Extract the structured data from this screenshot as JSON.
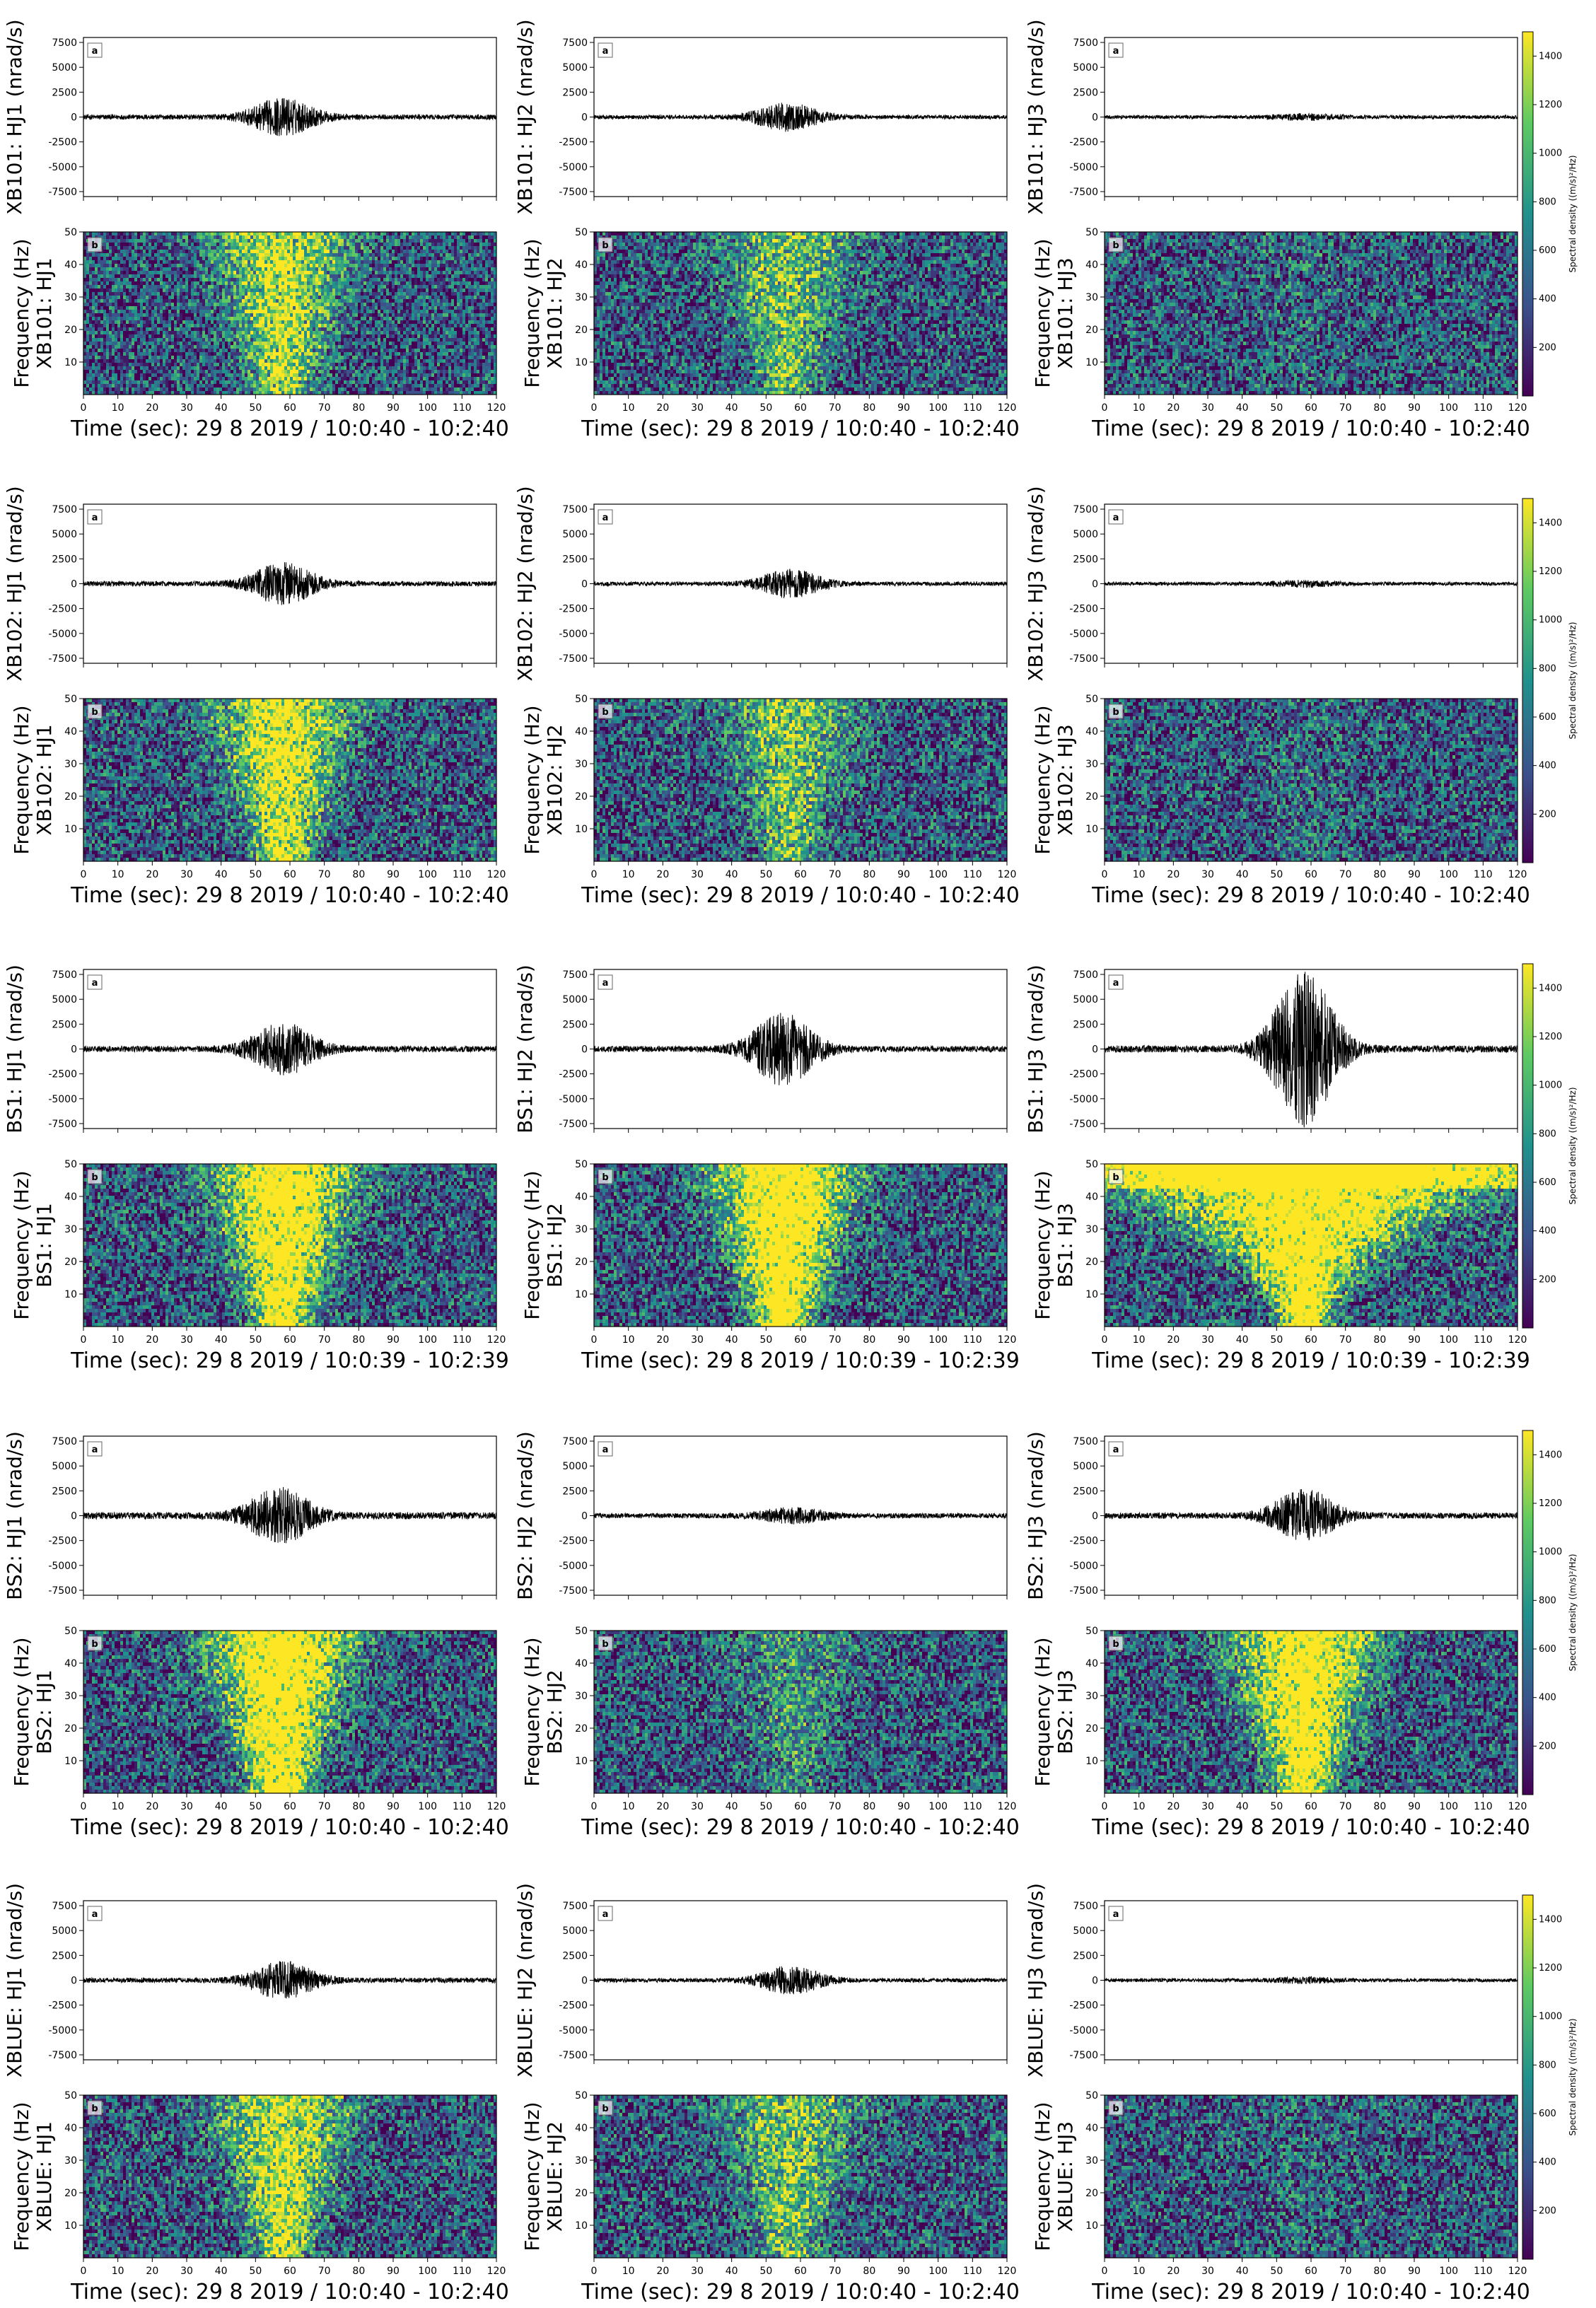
{
  "figure": {
    "stations": [
      "XB101",
      "XB102",
      "BS1",
      "BS2",
      "XBLUE"
    ],
    "components": [
      "HJ1",
      "HJ2",
      "HJ3"
    ],
    "time_labels": [
      "Time (sec): 29 8 2019 / 10:0:40 - 10:2:40",
      "Time (sec): 29 8 2019 / 10:0:40 - 10:2:40",
      "Time (sec): 29 8 2019 / 10:0:39 - 10:2:39",
      "Time (sec): 29 8 2019 / 10:0:40 - 10:2:40",
      "Time (sec): 29 8 2019 / 10:0:40 - 10:2:40"
    ],
    "panel_a_tag": "a",
    "panel_b_tag": "b",
    "wave_ylabel_suffix": "(nrad/s)",
    "spec_ylabel_prefix": "Frequency (Hz)",
    "colorbar_label": "Spectral density ((m/s)²/Hz)",
    "colors": {
      "viridis": [
        "#440154",
        "#3b528b",
        "#21918c",
        "#5ec962",
        "#fde725"
      ],
      "spectral_bright": "#fde725",
      "trace": "#000000"
    }
  },
  "chart_data": {
    "type": "waveform_and_spectrogram_grid",
    "waveform_axis": {
      "xlim": [
        0,
        120
      ],
      "ylim": [
        -8000,
        8000
      ],
      "yticks": [
        7500,
        5000,
        2500,
        0,
        -2500,
        -5000,
        -7500
      ]
    },
    "spectrogram_axis": {
      "xlim": [
        0,
        120
      ],
      "ylim": [
        0,
        50
      ],
      "yticks": [
        50,
        40,
        30,
        20,
        10
      ]
    },
    "xticks": [
      0,
      10,
      20,
      30,
      40,
      50,
      60,
      70,
      80,
      90,
      100,
      110,
      120
    ],
    "colorbar": {
      "range": [
        0,
        1500
      ],
      "ticks": [
        1400,
        1200,
        1000,
        800,
        600,
        400,
        200
      ]
    },
    "panels": [
      {
        "station": "XB101",
        "component": "HJ1",
        "peak_amplitude": 2000,
        "noise_amplitude": 250,
        "event_center_s": 58
      },
      {
        "station": "XB101",
        "component": "HJ2",
        "peak_amplitude": 1500,
        "noise_amplitude": 200,
        "event_center_s": 56
      },
      {
        "station": "XB101",
        "component": "HJ3",
        "peak_amplitude": 400,
        "noise_amplitude": 180,
        "event_center_s": 58
      },
      {
        "station": "XB102",
        "component": "HJ1",
        "peak_amplitude": 2200,
        "noise_amplitude": 250,
        "event_center_s": 58
      },
      {
        "station": "XB102",
        "component": "HJ2",
        "peak_amplitude": 1500,
        "noise_amplitude": 200,
        "event_center_s": 57
      },
      {
        "station": "XB102",
        "component": "HJ3",
        "peak_amplitude": 400,
        "noise_amplitude": 180,
        "event_center_s": 58
      },
      {
        "station": "BS1",
        "component": "HJ1",
        "peak_amplitude": 2800,
        "noise_amplitude": 300,
        "event_center_s": 58
      },
      {
        "station": "BS1",
        "component": "HJ2",
        "peak_amplitude": 3800,
        "noise_amplitude": 300,
        "event_center_s": 55
      },
      {
        "station": "BS1",
        "component": "HJ3",
        "peak_amplitude": 8000,
        "noise_amplitude": 350,
        "event_center_s": 58
      },
      {
        "station": "BS2",
        "component": "HJ1",
        "peak_amplitude": 3000,
        "noise_amplitude": 350,
        "event_center_s": 57
      },
      {
        "station": "BS2",
        "component": "HJ2",
        "peak_amplitude": 900,
        "noise_amplitude": 250,
        "event_center_s": 58
      },
      {
        "station": "BS2",
        "component": "HJ3",
        "peak_amplitude": 2800,
        "noise_amplitude": 300,
        "event_center_s": 58
      },
      {
        "station": "XBLUE",
        "component": "HJ1",
        "peak_amplitude": 2000,
        "noise_amplitude": 250,
        "event_center_s": 58
      },
      {
        "station": "XBLUE",
        "component": "HJ2",
        "peak_amplitude": 1500,
        "noise_amplitude": 200,
        "event_center_s": 57
      },
      {
        "station": "XBLUE",
        "component": "HJ3",
        "peak_amplitude": 400,
        "noise_amplitude": 180,
        "event_center_s": 58
      }
    ]
  }
}
